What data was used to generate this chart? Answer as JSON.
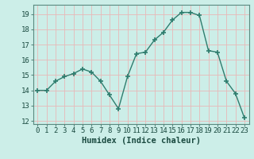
{
  "x": [
    0,
    1,
    2,
    3,
    4,
    5,
    6,
    7,
    8,
    9,
    10,
    11,
    12,
    13,
    14,
    15,
    16,
    17,
    18,
    19,
    20,
    21,
    22,
    23
  ],
  "y": [
    14.0,
    14.0,
    14.6,
    14.9,
    15.1,
    15.4,
    15.2,
    14.6,
    13.7,
    12.8,
    14.9,
    16.4,
    16.5,
    17.3,
    17.8,
    18.6,
    19.1,
    19.1,
    18.9,
    16.6,
    16.5,
    14.6,
    13.8,
    12.2
  ],
  "line_color": "#2e7d6e",
  "marker": "+",
  "marker_size": 4,
  "bg_color": "#cceee8",
  "grid_color": "#e8b8b8",
  "xlabel": "Humidex (Indice chaleur)",
  "xlim": [
    -0.5,
    23.5
  ],
  "ylim": [
    11.8,
    19.6
  ],
  "yticks": [
    12,
    13,
    14,
    15,
    16,
    17,
    18,
    19
  ],
  "xticks": [
    0,
    1,
    2,
    3,
    4,
    5,
    6,
    7,
    8,
    9,
    10,
    11,
    12,
    13,
    14,
    15,
    16,
    17,
    18,
    19,
    20,
    21,
    22,
    23
  ],
  "xtick_labels": [
    "0",
    "1",
    "2",
    "3",
    "4",
    "5",
    "6",
    "7",
    "8",
    "9",
    "10",
    "11",
    "12",
    "13",
    "14",
    "15",
    "16",
    "17",
    "18",
    "19",
    "20",
    "21",
    "22",
    "23"
  ],
  "xlabel_fontsize": 7.5,
  "tick_fontsize": 6.5,
  "line_width": 1.0,
  "spine_color": "#5a8a80"
}
